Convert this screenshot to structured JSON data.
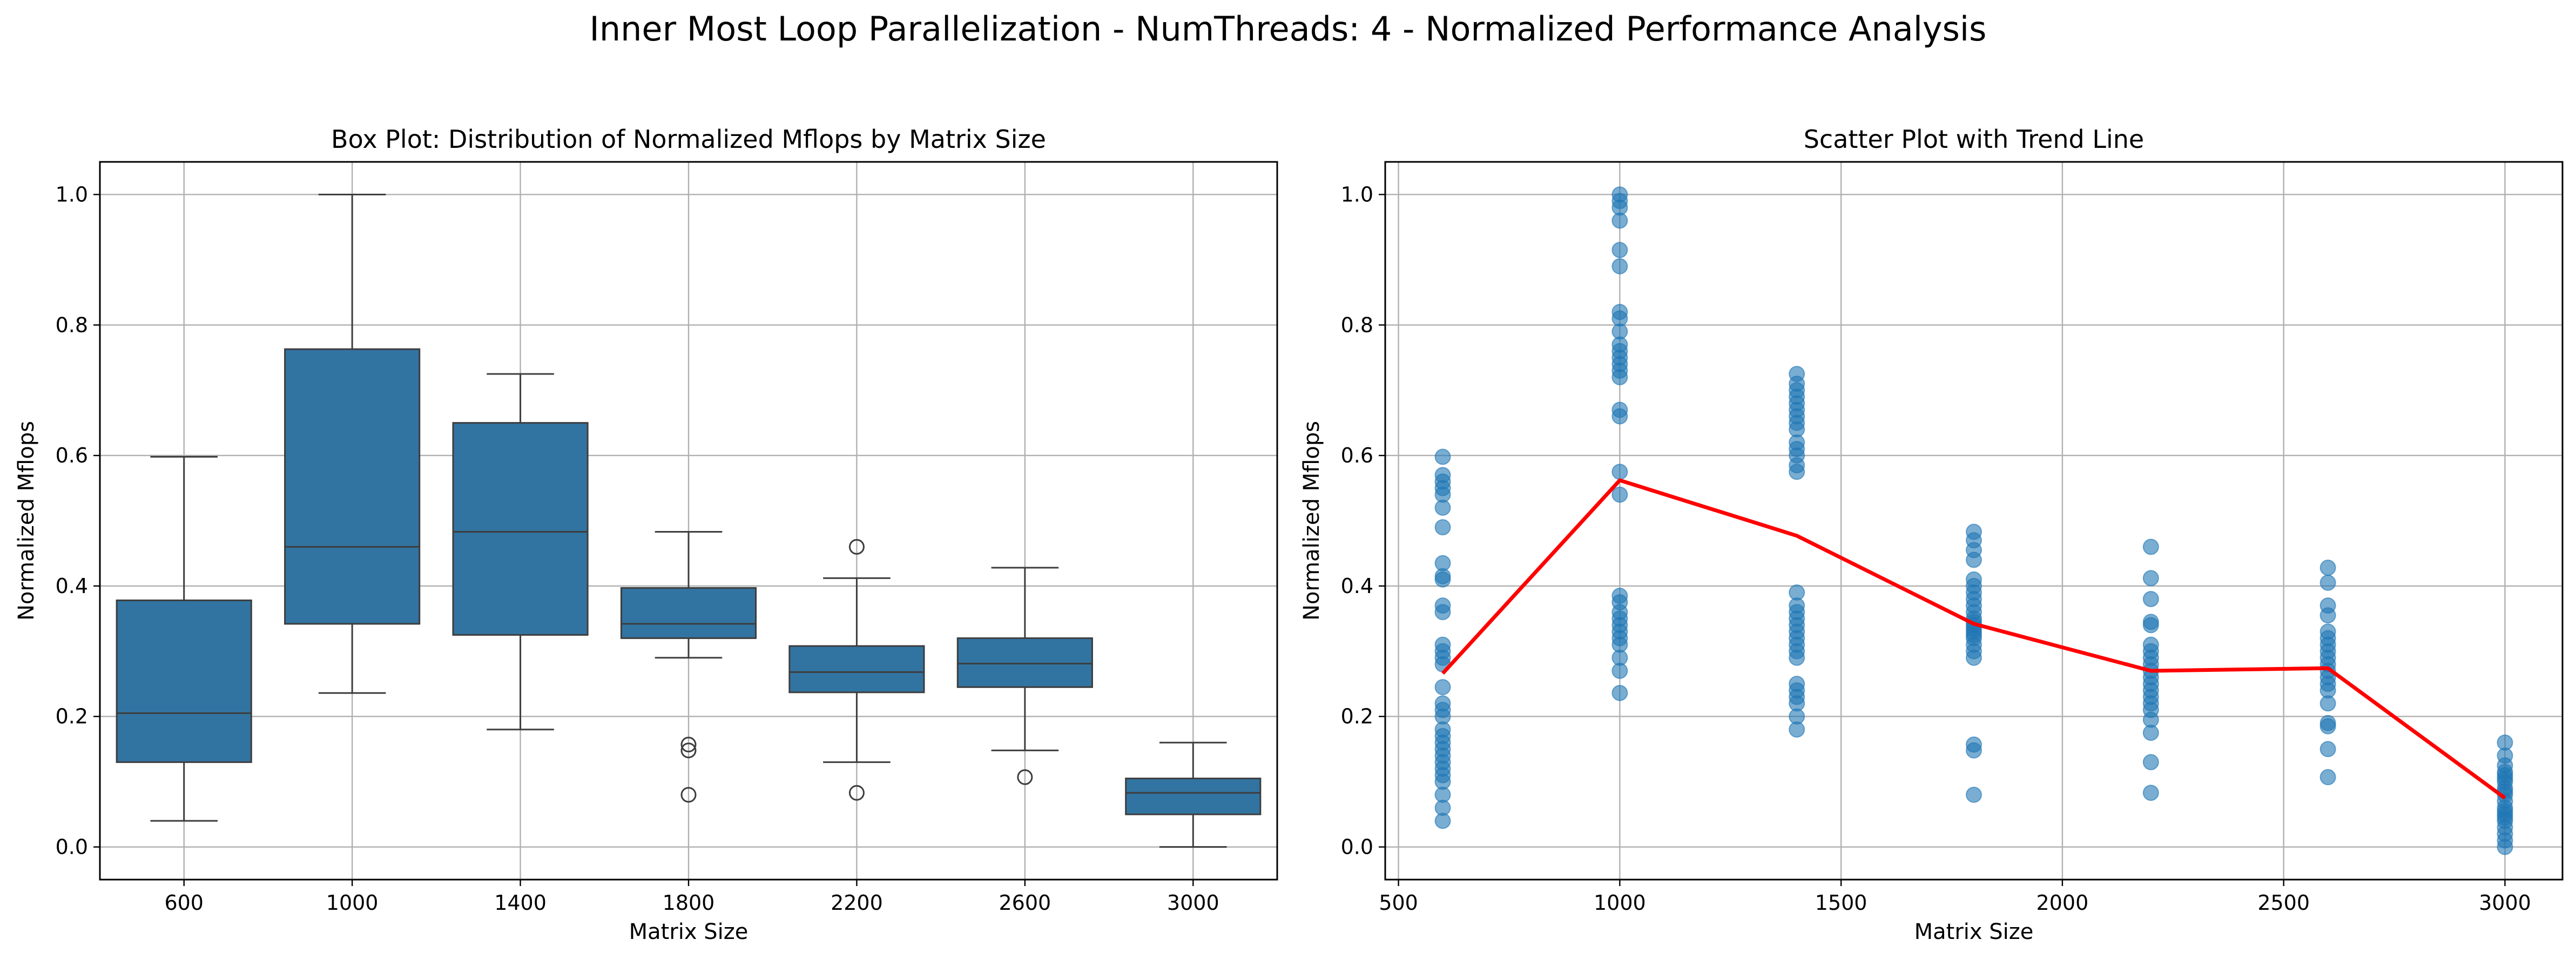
{
  "suptitle": "Inner Most Loop Parallelization - NumThreads: 4 - Normalized Performance Analysis",
  "chart_data": [
    {
      "type": "box",
      "title": "Box Plot: Distribution of Normalized Mflops by Matrix Size",
      "xlabel": "Matrix Size",
      "ylabel": "Normalized Mflops",
      "ylim": [
        -0.05,
        1.05
      ],
      "yticks": [
        0.0,
        0.2,
        0.4,
        0.6,
        0.8,
        1.0
      ],
      "ytick_labels": [
        "0.0",
        "0.2",
        "0.4",
        "0.6",
        "0.8",
        "1.0"
      ],
      "grid": true,
      "box_color": "#3274a1",
      "categories": [
        "600",
        "1000",
        "1400",
        "1800",
        "2200",
        "2600",
        "3000"
      ],
      "boxes": [
        {
          "category": "600",
          "whisker_low": 0.04,
          "q1": 0.13,
          "median": 0.205,
          "q3": 0.378,
          "whisker_high": 0.598,
          "outliers": []
        },
        {
          "category": "1000",
          "whisker_low": 0.236,
          "q1": 0.342,
          "median": 0.46,
          "q3": 0.763,
          "whisker_high": 1.0,
          "outliers": []
        },
        {
          "category": "1400",
          "whisker_low": 0.18,
          "q1": 0.325,
          "median": 0.483,
          "q3": 0.65,
          "whisker_high": 0.725,
          "outliers": []
        },
        {
          "category": "1800",
          "whisker_low": 0.29,
          "q1": 0.32,
          "median": 0.342,
          "q3": 0.397,
          "whisker_high": 0.483,
          "outliers": [
            0.157,
            0.148,
            0.08
          ]
        },
        {
          "category": "2200",
          "whisker_low": 0.13,
          "q1": 0.237,
          "median": 0.268,
          "q3": 0.308,
          "whisker_high": 0.412,
          "outliers": [
            0.46,
            0.083
          ]
        },
        {
          "category": "2600",
          "whisker_low": 0.148,
          "q1": 0.245,
          "median": 0.281,
          "q3": 0.32,
          "whisker_high": 0.428,
          "outliers": [
            0.107
          ]
        },
        {
          "category": "3000",
          "whisker_low": 0.0,
          "q1": 0.05,
          "median": 0.083,
          "q3": 0.105,
          "whisker_high": 0.16,
          "outliers": []
        }
      ]
    },
    {
      "type": "scatter",
      "title": "Scatter Plot with Trend Line",
      "xlabel": "Matrix Size",
      "ylabel": "Normalized Mflops",
      "xlim": [
        470,
        3130
      ],
      "ylim": [
        -0.05,
        1.05
      ],
      "xticks": [
        500,
        1000,
        1500,
        2000,
        2500,
        3000
      ],
      "xtick_labels": [
        "500",
        "1000",
        "1500",
        "2000",
        "2500",
        "3000"
      ],
      "yticks": [
        0.0,
        0.2,
        0.4,
        0.6,
        0.8,
        1.0
      ],
      "ytick_labels": [
        "0.0",
        "0.2",
        "0.4",
        "0.6",
        "0.8",
        "1.0"
      ],
      "grid": true,
      "point_color": "#1f77b4",
      "trend_color": "#ff0000",
      "series": [
        {
          "x": 600,
          "values": [
            0.598,
            0.57,
            0.56,
            0.55,
            0.54,
            0.52,
            0.49,
            0.435,
            0.415,
            0.41,
            0.37,
            0.36,
            0.31,
            0.3,
            0.29,
            0.28,
            0.245,
            0.22,
            0.21,
            0.2,
            0.18,
            0.17,
            0.16,
            0.15,
            0.14,
            0.13,
            0.12,
            0.11,
            0.1,
            0.08,
            0.06,
            0.04
          ]
        },
        {
          "x": 1000,
          "values": [
            1.0,
            0.99,
            0.98,
            0.96,
            0.915,
            0.89,
            0.82,
            0.81,
            0.79,
            0.77,
            0.76,
            0.75,
            0.74,
            0.73,
            0.72,
            0.67,
            0.66,
            0.575,
            0.54,
            0.385,
            0.375,
            0.36,
            0.35,
            0.34,
            0.33,
            0.32,
            0.31,
            0.29,
            0.27,
            0.236
          ]
        },
        {
          "x": 1400,
          "values": [
            0.725,
            0.71,
            0.7,
            0.69,
            0.68,
            0.67,
            0.66,
            0.65,
            0.64,
            0.62,
            0.61,
            0.6,
            0.585,
            0.575,
            0.39,
            0.37,
            0.36,
            0.35,
            0.34,
            0.33,
            0.32,
            0.31,
            0.3,
            0.29,
            0.25,
            0.24,
            0.23,
            0.22,
            0.2,
            0.18
          ]
        },
        {
          "x": 1800,
          "values": [
            0.483,
            0.47,
            0.455,
            0.44,
            0.41,
            0.4,
            0.39,
            0.38,
            0.37,
            0.36,
            0.35,
            0.345,
            0.34,
            0.335,
            0.33,
            0.325,
            0.32,
            0.31,
            0.3,
            0.29,
            0.157,
            0.148,
            0.08
          ]
        },
        {
          "x": 2200,
          "values": [
            0.46,
            0.412,
            0.38,
            0.345,
            0.34,
            0.31,
            0.3,
            0.29,
            0.28,
            0.27,
            0.26,
            0.25,
            0.24,
            0.23,
            0.22,
            0.21,
            0.195,
            0.175,
            0.13,
            0.083
          ]
        },
        {
          "x": 2600,
          "values": [
            0.428,
            0.405,
            0.37,
            0.355,
            0.33,
            0.32,
            0.31,
            0.3,
            0.29,
            0.28,
            0.27,
            0.26,
            0.25,
            0.24,
            0.22,
            0.19,
            0.185,
            0.15,
            0.107
          ]
        },
        {
          "x": 3000,
          "values": [
            0.16,
            0.14,
            0.125,
            0.115,
            0.11,
            0.105,
            0.1,
            0.09,
            0.085,
            0.08,
            0.07,
            0.06,
            0.055,
            0.05,
            0.045,
            0.04,
            0.03,
            0.02,
            0.01,
            0.0
          ]
        }
      ],
      "trend": {
        "x": [
          600,
          1000,
          1400,
          1800,
          2200,
          2600,
          3000
        ],
        "y": [
          0.266,
          0.562,
          0.477,
          0.342,
          0.27,
          0.274,
          0.075
        ]
      }
    }
  ]
}
